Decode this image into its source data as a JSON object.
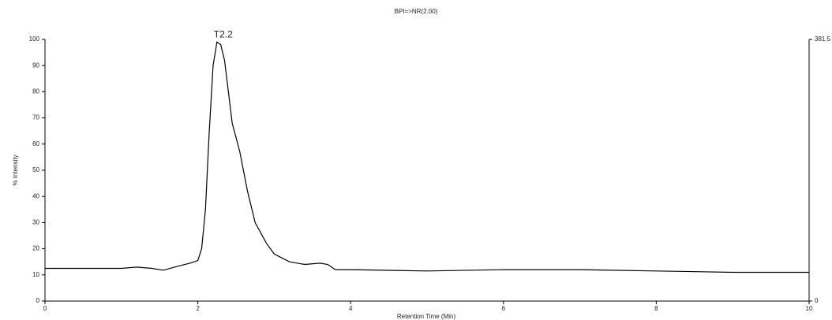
{
  "chart_data": {
    "type": "line",
    "title": "BPI=>NR(2.00)",
    "peak_label": "T2.2",
    "x_label": "Retention Time (Min)",
    "y_label": "% Intensity",
    "x": [
      0,
      1.0,
      1.2,
      1.4,
      1.55,
      1.7,
      1.9,
      2.0,
      2.05,
      2.1,
      2.15,
      2.2,
      2.25,
      2.3,
      2.35,
      2.4,
      2.45,
      2.55,
      2.65,
      2.75,
      2.9,
      3.0,
      3.2,
      3.4,
      3.6,
      3.7,
      3.8,
      4.0,
      5.0,
      6.0,
      7.0,
      8.0,
      9.0,
      10.0
    ],
    "series": [
      {
        "name": "BPI",
        "color": "#000000",
        "values": [
          12.5,
          12.5,
          13,
          12.5,
          11.8,
          13,
          14.5,
          15.5,
          20,
          35,
          65,
          90,
          99,
          98,
          92,
          80,
          68,
          57,
          42,
          30,
          22,
          18,
          15,
          14,
          14.5,
          14,
          12,
          12,
          11.5,
          12,
          12,
          11.5,
          11,
          11
        ]
      }
    ],
    "xlim": [
      0,
      10
    ],
    "xticks": [
      0,
      2,
      4,
      6,
      8,
      10
    ],
    "ylim": [
      0,
      100
    ],
    "yticks": [
      0,
      10,
      20,
      30,
      40,
      50,
      60,
      70,
      80,
      90,
      100
    ],
    "y2lim": [
      0,
      381.5
    ],
    "y2ticks": [
      0,
      381.5
    ],
    "grid": false
  }
}
